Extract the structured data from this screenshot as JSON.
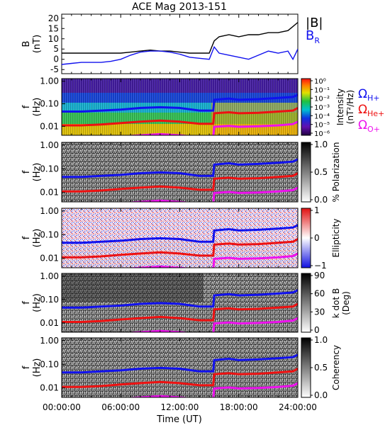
{
  "title": "ACE Mag 2013-151",
  "xlabel": "Time (UT)",
  "x_ticks": [
    "00:00:00",
    "06:00:00",
    "12:00:00",
    "18:00:00",
    "24:00:00"
  ],
  "x_range": [
    0,
    24
  ],
  "colors": {
    "black": "#000000",
    "blue": "#1111ee",
    "red": "#ee1111",
    "magenta": "#ee11ee"
  },
  "chart_data": [
    {
      "type": "line",
      "ylabel": [
        "B",
        "(nT)"
      ],
      "ylim": [
        -7,
        22
      ],
      "y_ticks": [
        "20",
        "15",
        "10",
        "5",
        "0",
        "-5"
      ],
      "y_tick_values": [
        20,
        15,
        10,
        5,
        0,
        -5
      ],
      "legend": [
        {
          "text": "|B|",
          "color": "#000000"
        },
        {
          "text": "B",
          "sub": "R",
          "color": "#1111ee"
        }
      ],
      "series": [
        {
          "name": "|B|",
          "color": "#000000",
          "x": [
            0,
            1,
            2,
            3,
            4,
            5,
            6,
            7,
            8,
            9,
            10,
            11,
            12,
            13,
            14,
            15,
            15.5,
            16,
            17,
            18,
            19,
            20,
            21,
            22,
            23,
            23.5,
            24
          ],
          "y": [
            3,
            3,
            3,
            3,
            3,
            3,
            3,
            3.5,
            4,
            4.5,
            4,
            4,
            3.5,
            3,
            3,
            3,
            9,
            11,
            12,
            11,
            12,
            12,
            13,
            13,
            14,
            16,
            18
          ]
        },
        {
          "name": "B_R",
          "color": "#1111ee",
          "x": [
            0,
            1,
            2,
            3,
            4,
            5,
            6,
            7,
            8,
            9,
            10,
            11,
            12,
            13,
            14,
            15,
            15.5,
            16,
            17,
            18,
            19,
            20,
            21,
            22,
            23,
            23.5,
            24
          ],
          "y": [
            -2.5,
            -2,
            -1.5,
            -1.5,
            -1.5,
            -1,
            0,
            2,
            3.5,
            4,
            4,
            3.5,
            2.5,
            1,
            0.5,
            0,
            6,
            3,
            2,
            1,
            0,
            2,
            4,
            3,
            4,
            0,
            5
          ]
        }
      ]
    },
    {
      "type": "heatmap",
      "ylabel": [
        "f",
        "(Hz)"
      ],
      "ylim_log": [
        0.004,
        1.3
      ],
      "y_ticks": [
        "1.00",
        "0.10",
        "0.01"
      ],
      "y_tick_values": [
        1,
        0.1,
        0.01
      ],
      "colorbar": {
        "label": [
          "Intensity",
          "(nT²/Hz)"
        ],
        "ticks": [
          "10⁰",
          "10⁻¹",
          "10⁻²",
          "10⁻³",
          "10⁻⁴",
          "10⁻⁵",
          "10⁻⁶"
        ],
        "scale": "rainbow"
      },
      "legend": [
        {
          "text": "Ω",
          "sub": "H+",
          "color": "#1111ee"
        },
        {
          "text": "Ω",
          "sub": "He+",
          "color": "#ee1111"
        },
        {
          "text": "Ω",
          "sub": "O+",
          "color": "#ee11ee"
        }
      ]
    },
    {
      "type": "heatmap",
      "ylabel": [
        "f",
        "(Hz)"
      ],
      "ylim_log": [
        0.004,
        1.3
      ],
      "y_ticks": [
        "1.00",
        "0.10",
        "0.01"
      ],
      "y_tick_values": [
        1,
        0.1,
        0.01
      ],
      "colorbar": {
        "label": [
          "% Polarization"
        ],
        "ticks": [
          "1.0",
          "0.5",
          "0.0"
        ],
        "scale": "gray"
      }
    },
    {
      "type": "heatmap",
      "ylabel": [
        "f",
        "(Hz)"
      ],
      "ylim_log": [
        0.004,
        1.3
      ],
      "y_ticks": [
        "1.00",
        "0.10",
        "0.01"
      ],
      "y_tick_values": [
        1,
        0.1,
        0.01
      ],
      "colorbar": {
        "label": [
          "Ellipticity"
        ],
        "ticks": [
          "1",
          "0",
          "−1"
        ],
        "scale": "bwr"
      }
    },
    {
      "type": "heatmap",
      "ylabel": [
        "f",
        "(Hz)"
      ],
      "ylim_log": [
        0.004,
        1.3
      ],
      "y_ticks": [
        "1.00",
        "0.10",
        "0.01"
      ],
      "y_tick_values": [
        1,
        0.1,
        0.01
      ],
      "colorbar": {
        "label": [
          "k dot B",
          "(Deg)"
        ],
        "ticks": [
          "90",
          "60",
          "30",
          "0"
        ],
        "scale": "gray"
      }
    },
    {
      "type": "heatmap",
      "ylabel": [
        "f",
        "(Hz)"
      ],
      "ylim_log": [
        0.004,
        1.3
      ],
      "y_ticks": [
        "1.00",
        "0.10",
        "0.01"
      ],
      "y_tick_values": [
        1,
        0.1,
        0.01
      ],
      "colorbar": {
        "label": [
          "Coherency"
        ],
        "ticks": [
          "1.0",
          "0.5",
          "0.0"
        ],
        "scale": "gray"
      }
    }
  ],
  "gyrofrequency_lines": [
    {
      "name": "H+",
      "color": "#1111ee",
      "x": [
        0,
        2,
        4,
        6,
        8,
        10,
        12,
        14,
        15.4,
        15.5,
        17,
        18,
        20,
        22,
        23.5,
        24
      ],
      "y": [
        0.045,
        0.045,
        0.05,
        0.055,
        0.065,
        0.07,
        0.065,
        0.05,
        0.05,
        0.15,
        0.17,
        0.15,
        0.16,
        0.18,
        0.2,
        0.25
      ]
    },
    {
      "name": "He+",
      "color": "#ee1111",
      "x": [
        0,
        2,
        4,
        6,
        8,
        10,
        12,
        14,
        15.4,
        15.5,
        17,
        18,
        20,
        22,
        23.5,
        24
      ],
      "y": [
        0.011,
        0.011,
        0.012,
        0.014,
        0.016,
        0.018,
        0.016,
        0.013,
        0.013,
        0.038,
        0.042,
        0.038,
        0.04,
        0.045,
        0.05,
        0.065
      ]
    },
    {
      "name": "O+",
      "color": "#ee11ee",
      "x": [
        0,
        2,
        4,
        6,
        8,
        10,
        12,
        14,
        15.4,
        15.5,
        17,
        18,
        20,
        22,
        23.5,
        24
      ],
      "y": [
        0.0028,
        0.0028,
        0.003,
        0.0035,
        0.004,
        0.0045,
        0.004,
        0.0033,
        0.0033,
        0.0095,
        0.0105,
        0.0095,
        0.01,
        0.011,
        0.0125,
        0.016
      ]
    }
  ]
}
